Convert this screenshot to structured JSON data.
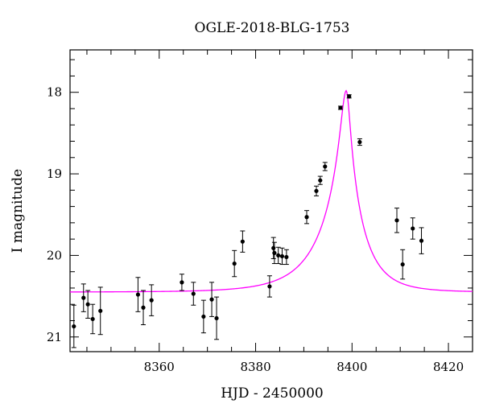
{
  "chart_data": {
    "type": "scatter",
    "title": "OGLE-2018-BLG-1753",
    "xlabel": "HJD - 2450000",
    "ylabel": "I magnitude",
    "xlim": [
      8341.5,
      8425
    ],
    "ylim": [
      21.18,
      17.48
    ],
    "y_inverted": true,
    "x_ticks": [
      8360,
      8380,
      8400,
      8420
    ],
    "y_ticks": [
      18,
      19,
      20,
      21
    ],
    "x_minor_step": 5,
    "y_minor_step": 0.2,
    "grid": false,
    "points": [
      {
        "x": 8342.3,
        "y": 20.87,
        "err": 0.26
      },
      {
        "x": 8344.3,
        "y": 20.52,
        "err": 0.17
      },
      {
        "x": 8345.2,
        "y": 20.6,
        "err": 0.17
      },
      {
        "x": 8346.2,
        "y": 20.78,
        "err": 0.18
      },
      {
        "x": 8347.8,
        "y": 20.68,
        "err": 0.29
      },
      {
        "x": 8355.6,
        "y": 20.48,
        "err": 0.21
      },
      {
        "x": 8356.7,
        "y": 20.64,
        "err": 0.21
      },
      {
        "x": 8358.4,
        "y": 20.55,
        "err": 0.19
      },
      {
        "x": 8364.7,
        "y": 20.33,
        "err": 0.1
      },
      {
        "x": 8367.1,
        "y": 20.47,
        "err": 0.14
      },
      {
        "x": 8369.2,
        "y": 20.75,
        "err": 0.2
      },
      {
        "x": 8370.9,
        "y": 20.54,
        "err": 0.21
      },
      {
        "x": 8371.9,
        "y": 20.77,
        "err": 0.26
      },
      {
        "x": 8375.6,
        "y": 20.1,
        "err": 0.16
      },
      {
        "x": 8377.3,
        "y": 19.83,
        "err": 0.13
      },
      {
        "x": 8382.9,
        "y": 20.38,
        "err": 0.13
      },
      {
        "x": 8383.7,
        "y": 19.91,
        "err": 0.13
      },
      {
        "x": 8383.9,
        "y": 19.97,
        "err": 0.13
      },
      {
        "x": 8384.7,
        "y": 20.0,
        "err": 0.1
      },
      {
        "x": 8385.5,
        "y": 20.01,
        "err": 0.1
      },
      {
        "x": 8386.4,
        "y": 20.02,
        "err": 0.09
      },
      {
        "x": 8390.6,
        "y": 19.53,
        "err": 0.08
      },
      {
        "x": 8392.6,
        "y": 19.21,
        "err": 0.06
      },
      {
        "x": 8393.4,
        "y": 19.08,
        "err": 0.05
      },
      {
        "x": 8394.4,
        "y": 18.91,
        "err": 0.05
      },
      {
        "x": 8397.6,
        "y": 18.19,
        "err": 0.02
      },
      {
        "x": 8399.4,
        "y": 18.05,
        "err": 0.02
      },
      {
        "x": 8401.6,
        "y": 18.61,
        "err": 0.04
      },
      {
        "x": 8409.3,
        "y": 19.57,
        "err": 0.15
      },
      {
        "x": 8410.5,
        "y": 20.11,
        "err": 0.18
      },
      {
        "x": 8412.6,
        "y": 19.67,
        "err": 0.13
      },
      {
        "x": 8414.4,
        "y": 19.82,
        "err": 0.16
      }
    ],
    "model": {
      "base": 20.45,
      "peak_x": 8398.8,
      "peak_y": 17.98,
      "rise_tE": 10.0,
      "fall_tE": 7.0
    },
    "colors": {
      "points": "#000000",
      "model": "#ff00ff",
      "axes": "#000000"
    }
  }
}
